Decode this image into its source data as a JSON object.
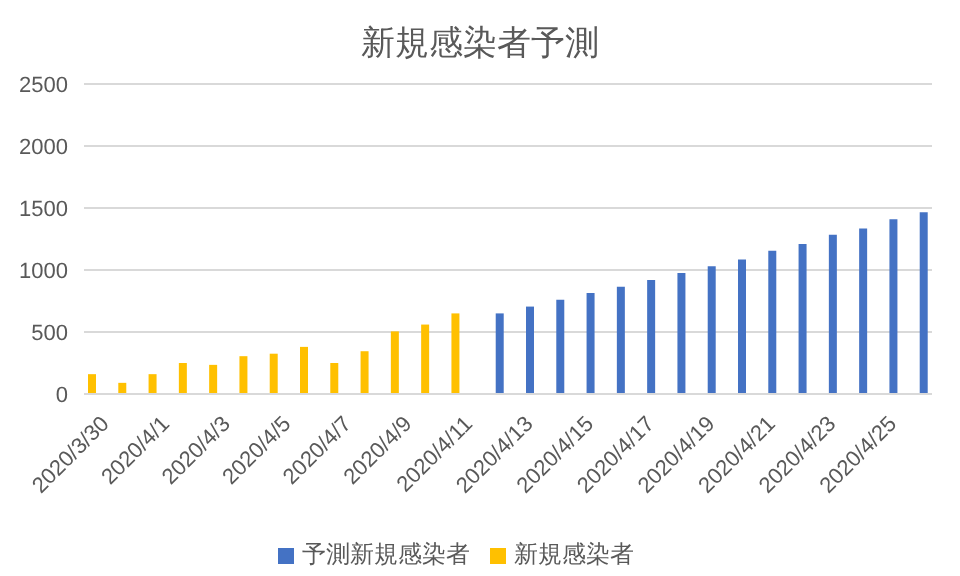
{
  "chart_data": {
    "type": "bar",
    "title": "新規感染者予測",
    "categories": [
      "2020/3/30",
      null,
      "2020/4/1",
      null,
      "2020/4/3",
      null,
      "2020/4/5",
      null,
      "2020/4/7",
      null,
      "2020/4/9",
      null,
      "2020/4/11",
      null,
      "2020/4/13",
      null,
      "2020/4/15",
      null,
      "2020/4/17",
      null,
      "2020/4/19",
      null,
      "2020/4/21",
      null,
      "2020/4/23",
      null,
      "2020/4/25",
      null
    ],
    "series": [
      {
        "name": "新規感染者",
        "color": "#ffc000",
        "values": [
          160,
          90,
          160,
          250,
          235,
          305,
          325,
          380,
          250,
          345,
          505,
          560,
          650,
          null,
          null,
          null,
          null,
          null,
          null,
          null,
          null,
          null,
          null,
          null,
          null,
          null,
          null,
          null
        ]
      },
      {
        "name": "予測新規感染者",
        "color": "#4472c4",
        "values": [
          null,
          null,
          null,
          null,
          null,
          null,
          null,
          null,
          null,
          null,
          null,
          null,
          null,
          650,
          705,
          760,
          815,
          865,
          920,
          975,
          1030,
          1085,
          1155,
          1210,
          1285,
          1335,
          1410,
          1465
        ]
      }
    ],
    "ylim": [
      0,
      2500
    ],
    "yticks": [
      0,
      500,
      1000,
      1500,
      2000,
      2500
    ],
    "grid": "y",
    "legend": "bottom"
  }
}
